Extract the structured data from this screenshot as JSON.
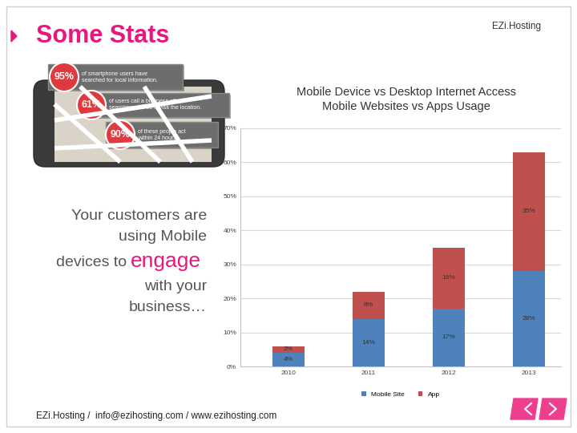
{
  "header": {
    "title": "Some Stats",
    "brand": "EZi.Hosting"
  },
  "stats": [
    {
      "figure": "95%",
      "text": "of smartphone users have\nsearched for local information."
    },
    {
      "figure": "61%",
      "text": "of users call a business after\nsearching and 59% visit the location."
    },
    {
      "figure": "90%",
      "text": "of these people act\nwithin 24 hours."
    }
  ],
  "tagline": {
    "before": [
      "Your customers are",
      "using Mobile",
      "devices to"
    ],
    "highlight": "engage",
    "after": [
      "with your",
      "business…"
    ]
  },
  "footer": "EZi.Hosting /  info@ezihosting.com / www.ezihosting.com",
  "chart_data": {
    "type": "bar",
    "title": "Mobile Device vs Desktop Internet Access\nMobile Websites vs Apps Usage",
    "categories": [
      "2010",
      "2011",
      "2012",
      "2013"
    ],
    "stacked": true,
    "data_labels": true,
    "grid": true,
    "legend": "bottom",
    "series": [
      {
        "name": "Mobile Site",
        "color": "#4f81bd",
        "values": [
          4,
          14,
          17,
          28
        ],
        "value_labels": [
          "4%",
          "14%",
          "17%",
          "28%"
        ]
      },
      {
        "name": "App",
        "color": "#c0504d",
        "values": [
          2,
          8,
          18,
          35
        ],
        "value_labels": [
          "2%",
          "8%",
          "18%",
          "35%"
        ]
      }
    ],
    "ylim": [
      0,
      70
    ],
    "yticks": [
      {
        "value": 0,
        "label": "0%"
      },
      {
        "value": 10,
        "label": "10%"
      },
      {
        "value": 20,
        "label": "20%"
      },
      {
        "value": 30,
        "label": "30%"
      },
      {
        "value": 40,
        "label": "40%"
      },
      {
        "value": 50,
        "label": "50%"
      },
      {
        "value": 60,
        "label": "60%"
      },
      {
        "value": 70,
        "label": "70%"
      }
    ]
  }
}
